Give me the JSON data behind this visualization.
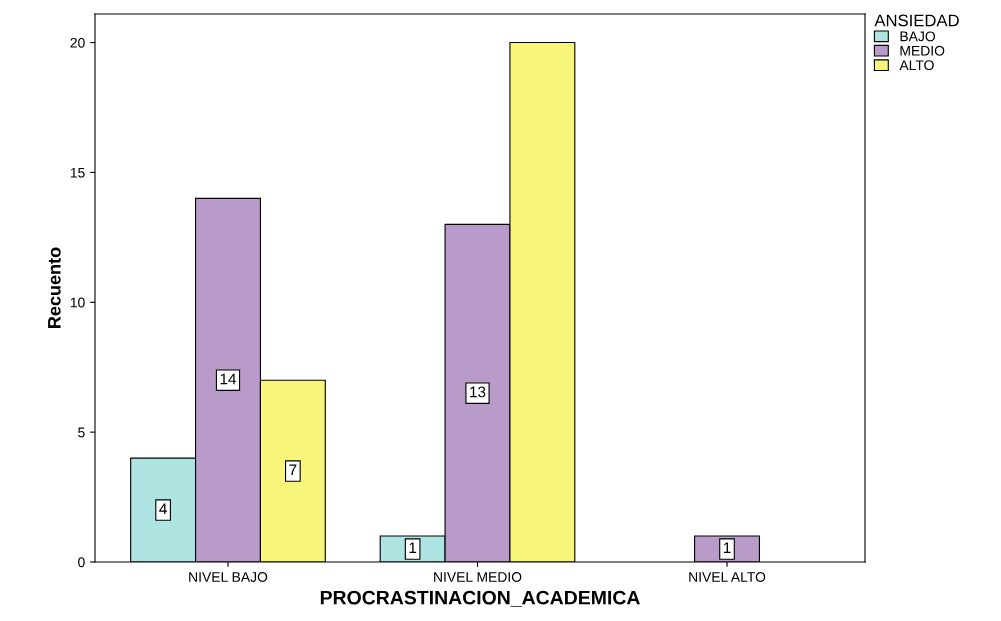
{
  "chart_data": {
    "type": "bar",
    "xlabel": "PROCRASTINACION_ACADEMICA",
    "ylabel": "Recuento",
    "legend_title": "ANSIEDAD",
    "categories": [
      "NIVEL BAJO",
      "NIVEL MEDIO",
      "NIVEL ALTO"
    ],
    "series": [
      {
        "name": "BAJO",
        "color": "#aee4e2",
        "values": [
          4,
          1,
          null
        ],
        "value_labels": [
          "4",
          "1",
          null
        ]
      },
      {
        "name": "MEDIO",
        "color": "#b89bc9",
        "values": [
          14,
          13,
          1
        ],
        "value_labels": [
          "14",
          "13",
          "1"
        ]
      },
      {
        "name": "ALTO",
        "color": "#f7f57a",
        "values": [
          7,
          20,
          null
        ],
        "value_labels": [
          "7",
          null,
          null
        ]
      }
    ],
    "ylim": [
      0,
      21.1
    ],
    "yticks": [
      0,
      5,
      10,
      15,
      20
    ],
    "grid": false,
    "legend": "top right"
  }
}
